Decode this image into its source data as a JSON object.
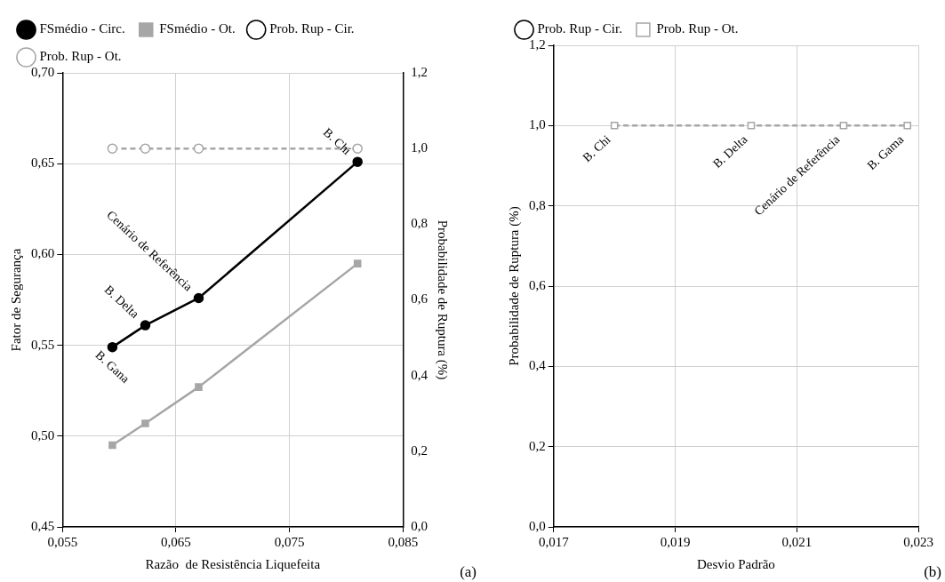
{
  "chart_data": [
    {
      "type": "line",
      "xlabel": "Razão  de Resistência Liquefeita",
      "ylabel": "Fator de Segurança",
      "y2label": "Probabilidade de Ruptura (%)",
      "x": [
        0.0594,
        0.0623,
        0.067,
        0.081
      ],
      "series": [
        {
          "name": "FSmédio - Circ.",
          "color": "#000000",
          "marker": "circle",
          "line_style": "solid",
          "values": [
            0.549,
            0.561,
            0.576,
            0.651
          ]
        },
        {
          "name": "FSmédio - Ot.",
          "color": "#a6a6a6",
          "marker": "square",
          "line_style": "solid",
          "values": [
            0.495,
            0.507,
            0.527,
            0.595
          ]
        },
        {
          "name": "Prob. Rup - Cir.",
          "color": "#000000",
          "marker": "circle",
          "line_style": "dashed",
          "axis": "y2",
          "values": [
            null,
            null,
            null,
            null
          ]
        },
        {
          "name": "Prob. Rup - Ot.",
          "color": "#a6a6a6",
          "marker": "circle",
          "line_style": "dashed",
          "axis": "y2",
          "values": [
            1.0,
            1.0,
            1.0,
            1.0
          ]
        }
      ],
      "xlim": [
        0.055,
        0.085
      ],
      "xticks": [
        {
          "value": 0.055,
          "label": "0,055"
        },
        {
          "value": 0.065,
          "label": "0,065"
        },
        {
          "value": 0.075,
          "label": "0,075"
        },
        {
          "value": 0.085,
          "label": "0,085"
        }
      ],
      "ylim": [
        0.45,
        0.7
      ],
      "yticks": [
        {
          "value": 0.45,
          "label": "0,45"
        },
        {
          "value": 0.5,
          "label": "0,50"
        },
        {
          "value": 0.55,
          "label": "0,55"
        },
        {
          "value": 0.6,
          "label": "0,60"
        },
        {
          "value": 0.65,
          "label": "0,65"
        },
        {
          "value": 0.7,
          "label": "0,70"
        }
      ],
      "y2lim": [
        0,
        1.2
      ],
      "y2ticks": [
        {
          "value": 0,
          "label": "0,0"
        },
        {
          "value": 0.2,
          "label": "0,2"
        },
        {
          "value": 0.4,
          "label": "0,4"
        },
        {
          "value": 0.6,
          "label": "0,6"
        },
        {
          "value": 0.8,
          "label": "0,8"
        },
        {
          "value": 1.0,
          "label": "1,0"
        },
        {
          "value": 1.2,
          "label": "1,2"
        }
      ],
      "grid": true,
      "legend": "top",
      "annotations": [
        {
          "text": "B. Gana",
          "x": 0.0594,
          "y": 0.549
        },
        {
          "text": "B. Delta",
          "x": 0.0623,
          "y": 0.561
        },
        {
          "text": "Cenário de Referência",
          "x": 0.067,
          "y": 0.576
        },
        {
          "text": "B. Chi",
          "x": 0.081,
          "y": 0.651
        },
        "(a)"
      ]
    },
    {
      "type": "line",
      "xlabel": "Desvio Padrão",
      "ylabel": "Probabilidade de Ruptura (%)",
      "x": [
        0.018,
        0.02025,
        0.02177,
        0.02282
      ],
      "series": [
        {
          "name": "Prob. Rup - Cir.",
          "color": "#000000",
          "marker": "circle",
          "line_style": "dashed",
          "values": [
            null,
            null,
            null,
            null
          ]
        },
        {
          "name": "Prob. Rup - Ot.",
          "color": "#a6a6a6",
          "marker": "square",
          "line_style": "dashed",
          "values": [
            1.0,
            1.0,
            1.0,
            1.0
          ]
        }
      ],
      "xlim": [
        0.017,
        0.023
      ],
      "xticks": [
        {
          "value": 0.017,
          "label": "0,017"
        },
        {
          "value": 0.019,
          "label": "0,019"
        },
        {
          "value": 0.021,
          "label": "0,021"
        },
        {
          "value": 0.023,
          "label": "0,023"
        }
      ],
      "ylim": [
        0,
        1.2
      ],
      "yticks": [
        {
          "value": 0,
          "label": "0,0"
        },
        {
          "value": 0.2,
          "label": "0,2"
        },
        {
          "value": 0.4,
          "label": "0,4"
        },
        {
          "value": 0.6,
          "label": "0,6"
        },
        {
          "value": 0.8,
          "label": "0,8"
        },
        {
          "value": 1.0,
          "label": "1,0"
        },
        {
          "value": 1.2,
          "label": "1,2"
        }
      ],
      "grid": true,
      "legend": "top",
      "annotations": [
        {
          "text": "B. Chi",
          "x": 0.018,
          "y": 1.0
        },
        {
          "text": "B. Delta",
          "x": 0.02025,
          "y": 1.0
        },
        {
          "text": "Cenário de Referência",
          "x": 0.02177,
          "y": 1.0
        },
        {
          "text": "B. Gama",
          "x": 0.02282,
          "y": 1.0
        },
        "(b)"
      ]
    }
  ]
}
